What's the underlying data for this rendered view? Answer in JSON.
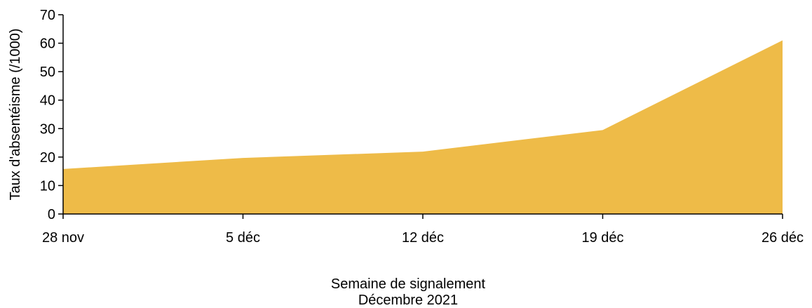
{
  "chart_data": {
    "type": "area",
    "categories": [
      "28 nov",
      "5 déc",
      "12 déc",
      "19 déc",
      "26 déc"
    ],
    "series": [
      {
        "values": [
          15.8,
          19.7,
          21.9,
          29.5,
          61.0
        ],
        "color": "#EEBB48"
      }
    ],
    "ylim": [
      0,
      70
    ],
    "yticks": [
      0,
      10,
      20,
      30,
      40,
      50,
      60,
      70
    ],
    "ylabel": "Taux d'absentéisme (/1000)",
    "xlabel_lines": [
      "Semaine de signalement",
      "Décembre 2021"
    ],
    "grid": false
  }
}
